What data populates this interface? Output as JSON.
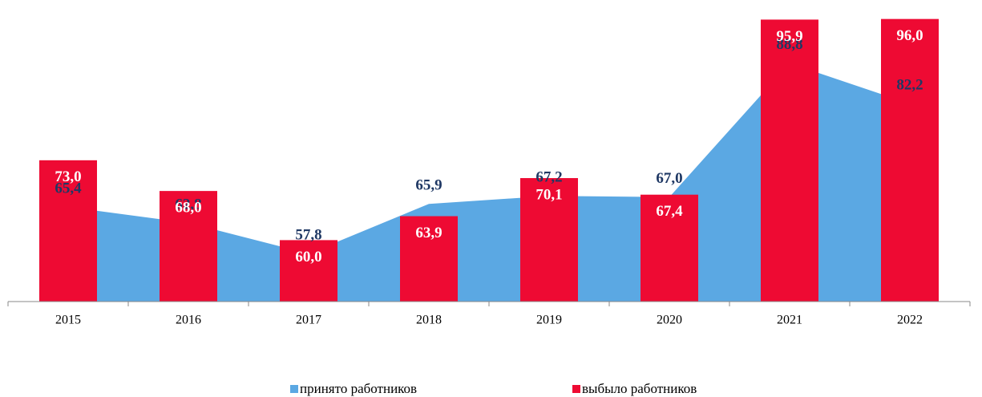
{
  "chart_data": {
    "type": "bar",
    "categories": [
      "2015",
      "2016",
      "2017",
      "2018",
      "2019",
      "2020",
      "2021",
      "2022"
    ],
    "ylim": [
      50,
      97
    ],
    "series": [
      {
        "name": "принято работников",
        "type": "area",
        "color": "#5ba8e3",
        "values": [
          65.4,
          62.8,
          57.8,
          65.9,
          67.2,
          67.0,
          88.8,
          82.2
        ],
        "value_labels": [
          "65,4",
          "62,8",
          "57,8",
          "65,9",
          "67,2",
          "67,0",
          "88,8",
          "82,2"
        ]
      },
      {
        "name": "выбыло работников",
        "type": "bar",
        "color": "#ee0a33",
        "values": [
          73.0,
          68.0,
          60.0,
          63.9,
          70.1,
          67.4,
          95.9,
          96.0
        ],
        "value_labels": [
          "73,0",
          "68,0",
          "60,0",
          "63,9",
          "70,1",
          "67,4",
          "95,9",
          "96,0"
        ]
      }
    ]
  }
}
